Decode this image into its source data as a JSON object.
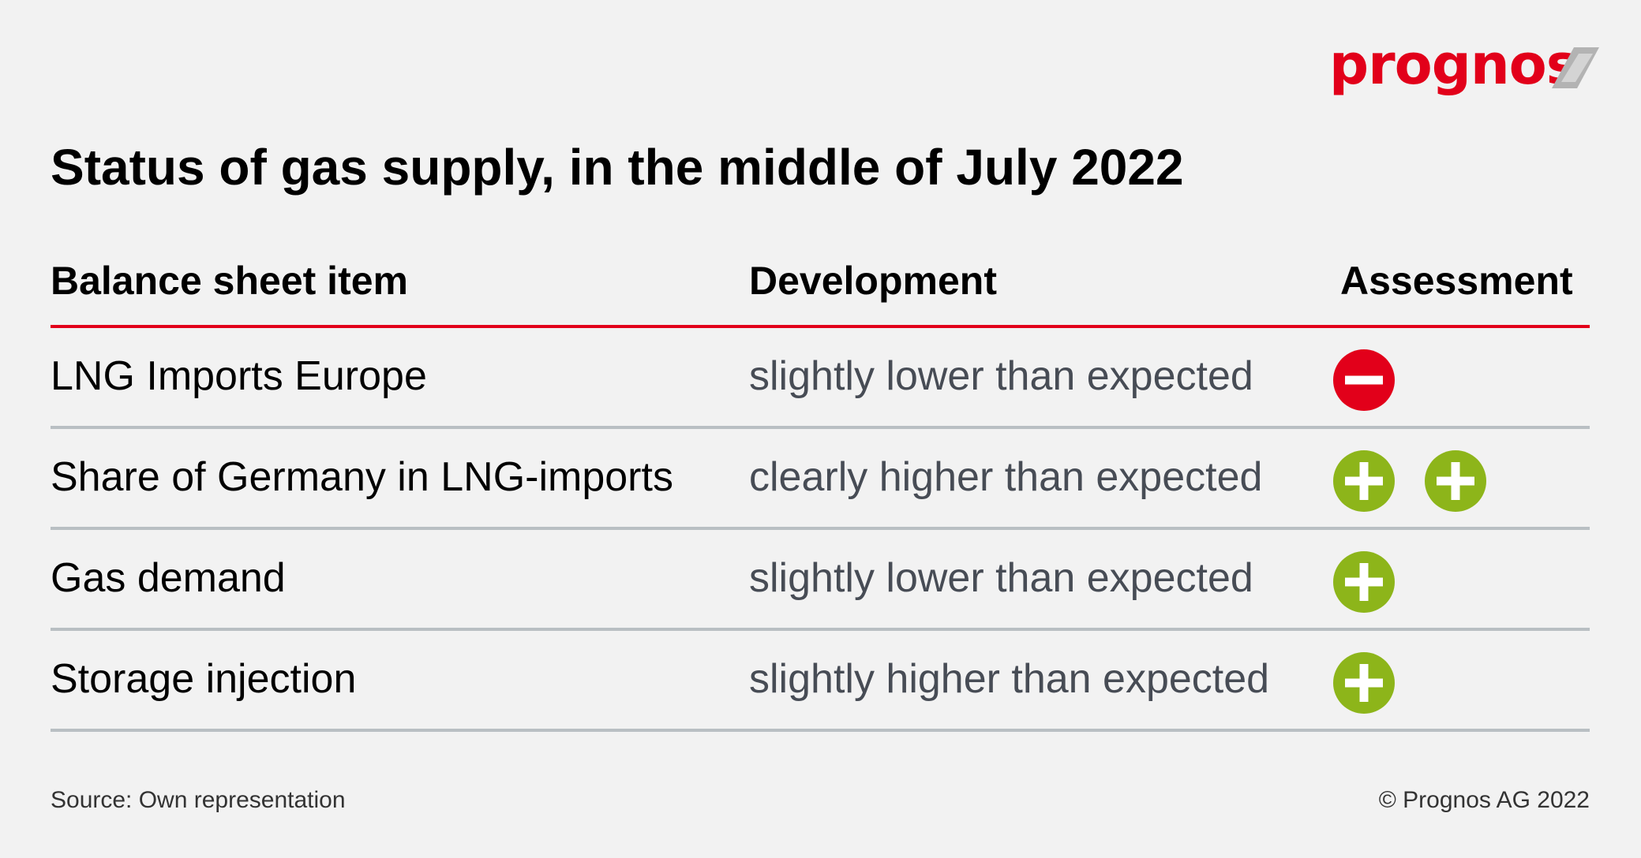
{
  "logo": {
    "text": "prognos",
    "color": "#e2001a"
  },
  "title": "Status of gas supply, in the middle of July 2022",
  "headers": {
    "item": "Balance sheet item",
    "development": "Development",
    "assessment": "Assessment"
  },
  "rows": [
    {
      "item": "LNG Imports Europe",
      "development": "slightly lower than expected",
      "assessment": [
        "minus"
      ]
    },
    {
      "item": "Share of Germany in LNG-imports",
      "development": "clearly higher than expected",
      "assessment": [
        "plus",
        "plus"
      ]
    },
    {
      "item": "Gas demand",
      "development": "slightly lower than expected",
      "assessment": [
        "plus"
      ]
    },
    {
      "item": "Storage injection",
      "development": "slightly higher than expected",
      "assessment": [
        "plus"
      ]
    }
  ],
  "footer": {
    "source": "Source: Own representation",
    "copyright": "© Prognos AG 2022"
  },
  "colors": {
    "negative": "#e2001a",
    "positive": "#8db51a",
    "divider": "#b9bfc3",
    "accent_rule": "#e2001a"
  }
}
